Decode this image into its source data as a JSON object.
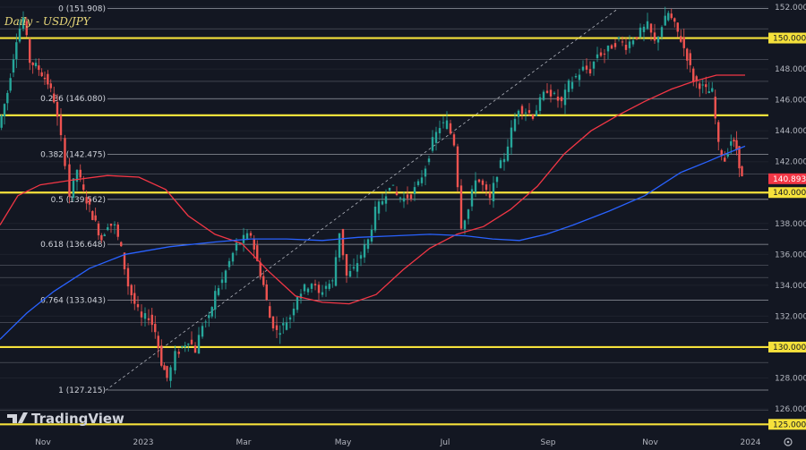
{
  "chart_data": {
    "type": "candlestick",
    "title": "Daily - USD/JPY",
    "ylim": [
      125,
      153
    ],
    "y_ticks": [
      "152.000",
      "150.000",
      "148.000",
      "146.000",
      "144.000",
      "142.000",
      "140.000",
      "138.000",
      "136.000",
      "134.000",
      "132.000",
      "130.000",
      "128.000",
      "126.000",
      "125.000"
    ],
    "x_ticks": [
      "Nov",
      "2023",
      "Mar",
      "May",
      "Jul",
      "Sep",
      "Nov",
      "2024"
    ],
    "fib_levels": [
      {
        "label": "0 (151.908)",
        "price": 151.908
      },
      {
        "label": "0.236 (146.080)",
        "price": 146.08
      },
      {
        "label": "0.382 (142.475)",
        "price": 142.475
      },
      {
        "label": "0.5 (139.562)",
        "price": 139.562
      },
      {
        "label": "0.618 (136.648)",
        "price": 136.648
      },
      {
        "label": "0.764 (133.043)",
        "price": 133.043
      },
      {
        "label": "1 (127.215)",
        "price": 127.215
      }
    ],
    "horizontal_levels": [
      {
        "label": "150.000",
        "price": 150.0,
        "color": "#f5e13b"
      },
      {
        "label": "145.000",
        "price": 145.0,
        "color": "#f5e13b"
      },
      {
        "label": "140.000",
        "price": 140.0,
        "color": "#f5e13b"
      },
      {
        "label": "130.000",
        "price": 130.0,
        "color": "#f5e13b"
      },
      {
        "label": "125.000",
        "price": 125.0,
        "color": "#f5e13b"
      }
    ],
    "last_price": {
      "label": "140.893",
      "price": 140.893,
      "color": "#f23645"
    },
    "series": [
      {
        "key": "red_ma",
        "color": "#f23645",
        "points": [
          [
            0,
            137.9
          ],
          [
            20,
            139.8
          ],
          [
            45,
            140.5
          ],
          [
            80,
            140.8
          ],
          [
            120,
            141.1
          ],
          [
            155,
            141.0
          ],
          [
            185,
            140.2
          ],
          [
            210,
            138.5
          ],
          [
            240,
            137.3
          ],
          [
            270,
            136.7
          ],
          [
            300,
            134.9
          ],
          [
            330,
            133.3
          ],
          [
            360,
            132.9
          ],
          [
            390,
            132.8
          ],
          [
            420,
            133.4
          ],
          [
            450,
            135.0
          ],
          [
            480,
            136.4
          ],
          [
            510,
            137.3
          ],
          [
            540,
            137.8
          ],
          [
            570,
            138.9
          ],
          [
            600,
            140.4
          ],
          [
            630,
            142.5
          ],
          [
            660,
            144.0
          ],
          [
            690,
            145.0
          ],
          [
            720,
            145.9
          ],
          [
            750,
            146.7
          ],
          [
            775,
            147.2
          ],
          [
            800,
            147.6
          ],
          [
            832,
            147.6
          ]
        ]
      },
      {
        "key": "blue_ma",
        "color": "#2962ff",
        "points": [
          [
            0,
            130.5
          ],
          [
            30,
            132.2
          ],
          [
            60,
            133.6
          ],
          [
            100,
            135.1
          ],
          [
            140,
            136.0
          ],
          [
            190,
            136.5
          ],
          [
            240,
            136.8
          ],
          [
            280,
            137.0
          ],
          [
            320,
            137.0
          ],
          [
            360,
            136.9
          ],
          [
            400,
            137.1
          ],
          [
            440,
            137.2
          ],
          [
            480,
            137.3
          ],
          [
            520,
            137.2
          ],
          [
            550,
            137.0
          ],
          [
            580,
            136.9
          ],
          [
            610,
            137.3
          ],
          [
            640,
            137.9
          ],
          [
            680,
            138.8
          ],
          [
            720,
            139.8
          ],
          [
            760,
            141.3
          ],
          [
            790,
            142.0
          ],
          [
            810,
            142.5
          ],
          [
            832,
            143.0
          ]
        ]
      },
      {
        "key": "candle_path",
        "color": "#26a69a",
        "points": [
          [
            0,
            144.2
          ],
          [
            10,
            146.5
          ],
          [
            20,
            150.0
          ],
          [
            28,
            151.3
          ],
          [
            35,
            148.5
          ],
          [
            45,
            148.0
          ],
          [
            55,
            147.1
          ],
          [
            62,
            146.0
          ],
          [
            70,
            143.5
          ],
          [
            75,
            142.0
          ],
          [
            80,
            139.8
          ],
          [
            88,
            141.5
          ],
          [
            95,
            140.0
          ],
          [
            105,
            138.5
          ],
          [
            115,
            137.0
          ],
          [
            122,
            138.0
          ],
          [
            130,
            137.8
          ],
          [
            137,
            136.3
          ],
          [
            145,
            134.0
          ],
          [
            152,
            132.8
          ],
          [
            160,
            131.8
          ],
          [
            168,
            132.0
          ],
          [
            175,
            131.0
          ],
          [
            182,
            129.0
          ],
          [
            188,
            128.0
          ],
          [
            193,
            128.6
          ],
          [
            198,
            129.5
          ],
          [
            205,
            130.0
          ],
          [
            212,
            130.5
          ],
          [
            220,
            129.8
          ],
          [
            228,
            131.5
          ],
          [
            235,
            131.8
          ],
          [
            242,
            133.5
          ],
          [
            250,
            134.3
          ],
          [
            258,
            135.5
          ],
          [
            266,
            136.6
          ],
          [
            274,
            137.0
          ],
          [
            282,
            137.3
          ],
          [
            289,
            135.5
          ],
          [
            296,
            134.0
          ],
          [
            303,
            131.9
          ],
          [
            311,
            131.0
          ],
          [
            318,
            131.4
          ],
          [
            326,
            132.0
          ],
          [
            334,
            133.4
          ],
          [
            342,
            133.8
          ],
          [
            350,
            134.2
          ],
          [
            358,
            133.4
          ],
          [
            366,
            134.0
          ],
          [
            373,
            134.2
          ],
          [
            381,
            137.5
          ],
          [
            389,
            134.6
          ],
          [
            397,
            135.0
          ],
          [
            405,
            136.0
          ],
          [
            413,
            136.9
          ],
          [
            421,
            138.8
          ],
          [
            429,
            139.5
          ],
          [
            437,
            140.6
          ],
          [
            445,
            139.8
          ],
          [
            453,
            139.6
          ],
          [
            461,
            139.9
          ],
          [
            469,
            140.5
          ],
          [
            477,
            141.7
          ],
          [
            485,
            143.3
          ],
          [
            493,
            144.3
          ],
          [
            501,
            144.5
          ],
          [
            509,
            143.2
          ],
          [
            517,
            137.9
          ],
          [
            525,
            138.9
          ],
          [
            533,
            141.0
          ],
          [
            541,
            140.4
          ],
          [
            549,
            139.5
          ],
          [
            557,
            141.3
          ],
          [
            565,
            142.3
          ],
          [
            573,
            144.0
          ],
          [
            581,
            145.5
          ],
          [
            589,
            145.3
          ],
          [
            597,
            145.0
          ],
          [
            605,
            145.9
          ],
          [
            613,
            146.7
          ],
          [
            621,
            146.2
          ],
          [
            629,
            145.8
          ],
          [
            637,
            147.0
          ],
          [
            645,
            147.5
          ],
          [
            653,
            148.0
          ],
          [
            661,
            147.9
          ],
          [
            669,
            149.0
          ],
          [
            677,
            149.0
          ],
          [
            685,
            149.5
          ],
          [
            693,
            149.9
          ],
          [
            701,
            149.5
          ],
          [
            709,
            150.0
          ],
          [
            717,
            150.4
          ],
          [
            725,
            150.8
          ],
          [
            733,
            149.7
          ],
          [
            741,
            150.8
          ],
          [
            748,
            151.6
          ],
          [
            755,
            150.8
          ],
          [
            762,
            149.9
          ],
          [
            769,
            148.8
          ],
          [
            776,
            147.3
          ],
          [
            783,
            147.0
          ],
          [
            790,
            146.6
          ],
          [
            797,
            146.5
          ],
          [
            804,
            143.0
          ],
          [
            811,
            142.1
          ],
          [
            818,
            143.4
          ],
          [
            824,
            142.8
          ],
          [
            830,
            140.9
          ]
        ]
      }
    ]
  },
  "labels": {
    "title": "Daily - USD/JPY",
    "logo": "TradingView",
    "settings_icon": "settings-icon"
  },
  "colors": {
    "background": "#131722",
    "up": "#26a69a",
    "down": "#ef5350",
    "level": "#f5e13b",
    "grid": "#434651"
  }
}
